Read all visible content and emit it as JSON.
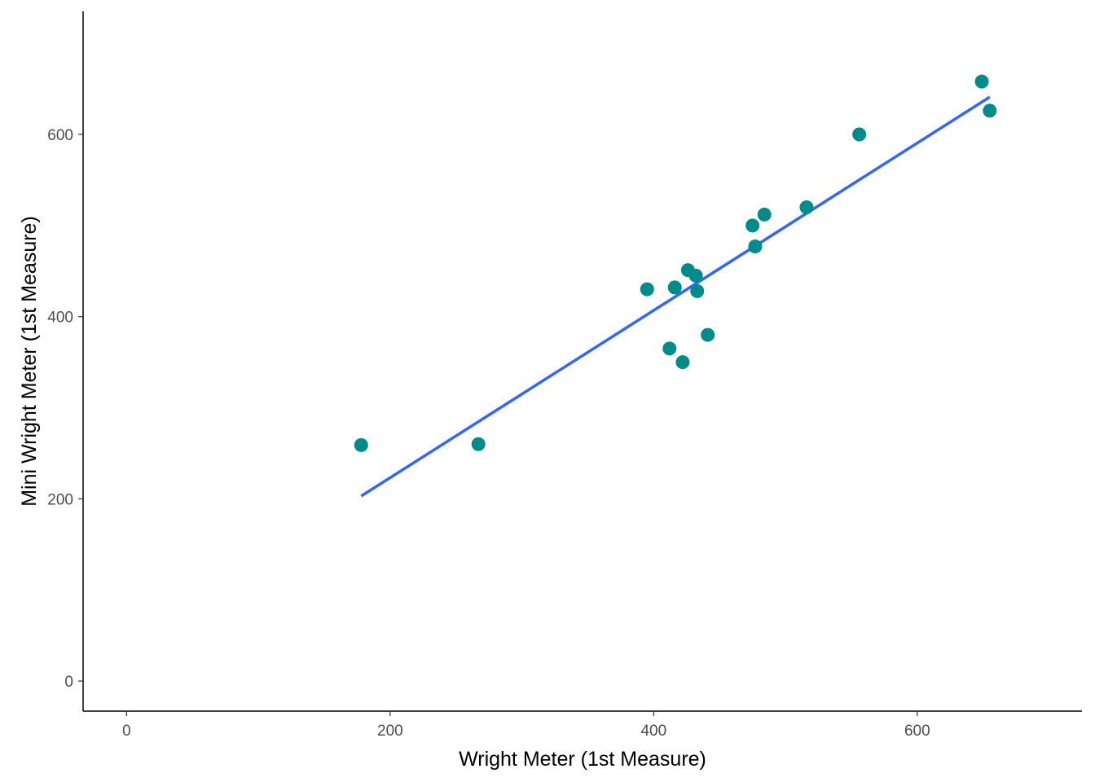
{
  "chart_data": {
    "type": "scatter",
    "title": "",
    "xlabel": "Wright Meter (1st Measure)",
    "ylabel": "Mini Wright Meter (1st Measure)",
    "xlim": [
      -33,
      725
    ],
    "ylim": [
      -33,
      735
    ],
    "xticks": [
      0,
      200,
      400,
      600
    ],
    "yticks": [
      0,
      200,
      400,
      600
    ],
    "grid": false,
    "legend": "none",
    "point_color": "#008B8B",
    "line_color": "#3366FF",
    "points": [
      {
        "x": 178,
        "y": 259
      },
      {
        "x": 267,
        "y": 260
      },
      {
        "x": 395,
        "y": 430
      },
      {
        "x": 412,
        "y": 365
      },
      {
        "x": 416,
        "y": 432
      },
      {
        "x": 422,
        "y": 350
      },
      {
        "x": 426,
        "y": 451
      },
      {
        "x": 432,
        "y": 445
      },
      {
        "x": 433,
        "y": 428
      },
      {
        "x": 441,
        "y": 380
      },
      {
        "x": 475,
        "y": 500
      },
      {
        "x": 477,
        "y": 477
      },
      {
        "x": 484,
        "y": 512
      },
      {
        "x": 516,
        "y": 520
      },
      {
        "x": 556,
        "y": 600
      },
      {
        "x": 649,
        "y": 658
      },
      {
        "x": 655,
        "y": 626
      }
    ],
    "fit_line": {
      "x": [
        178,
        655
      ],
      "y": [
        203,
        641
      ]
    }
  }
}
